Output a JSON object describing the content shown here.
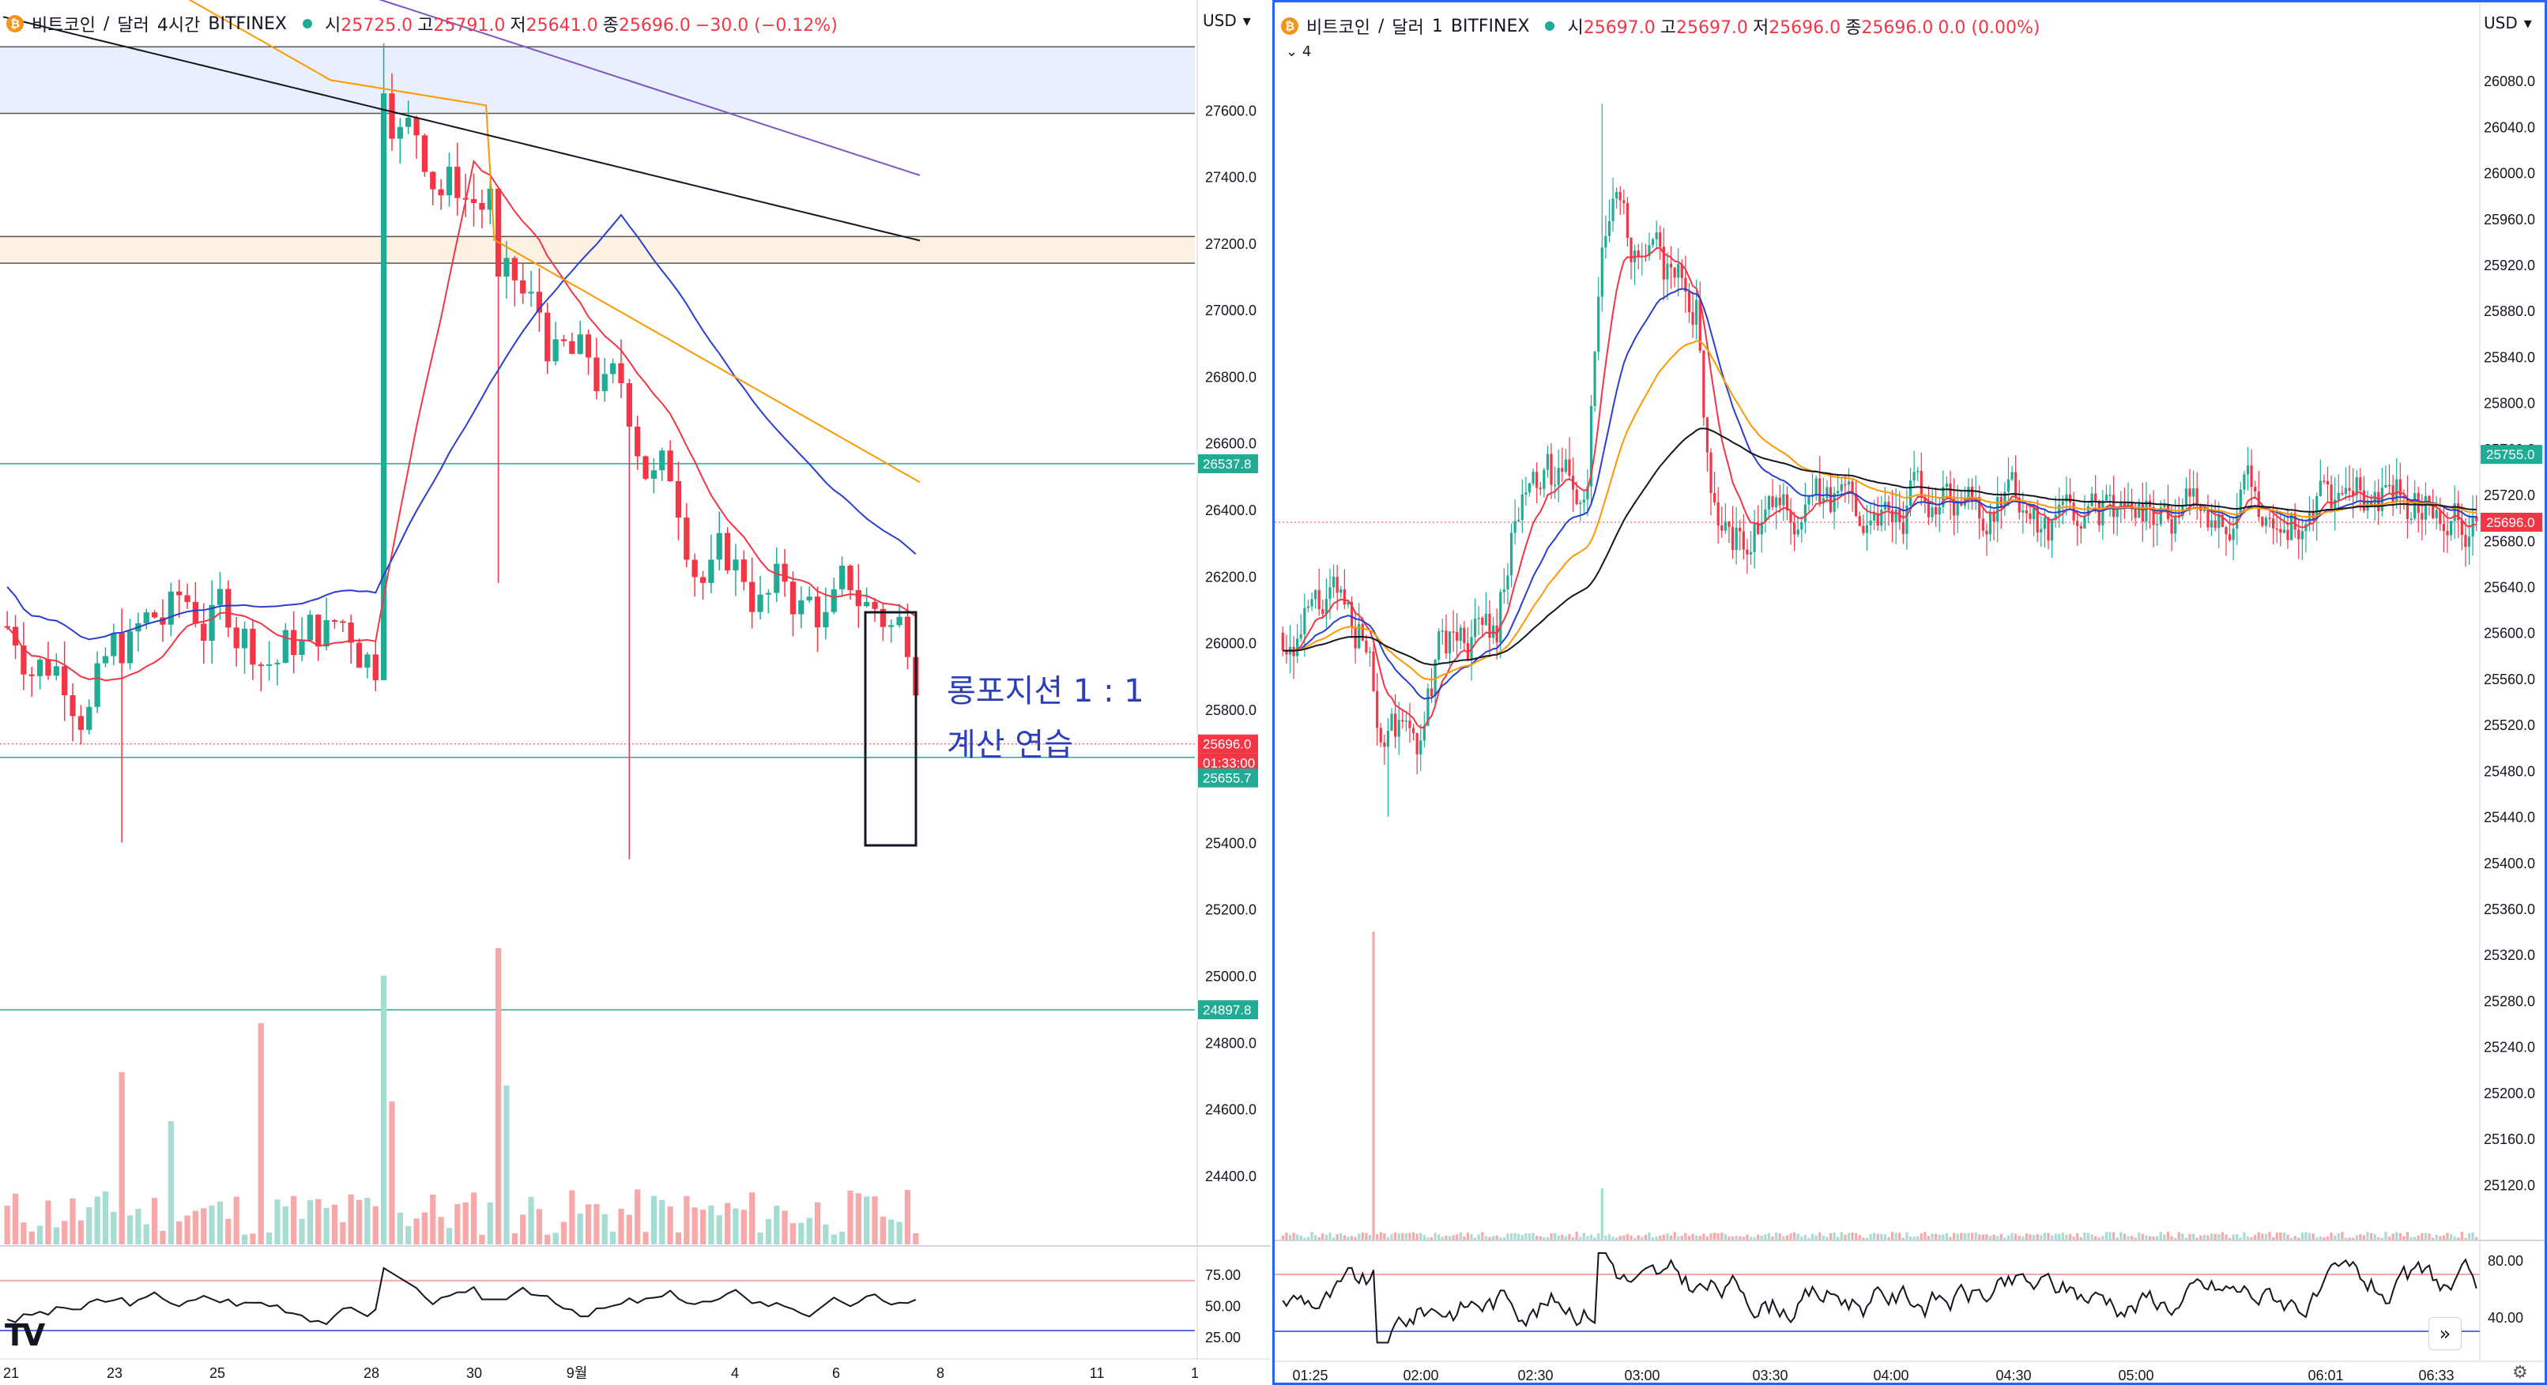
{
  "left_chart": {
    "symbol": "비트코인",
    "sep1": "/",
    "quote": "달러",
    "interval": "4시간",
    "exchange": "BITFINEX",
    "ohlc": [
      {
        "k": "시",
        "v": "25725.0"
      },
      {
        "k": "고",
        "v": "25791.0"
      },
      {
        "k": "저",
        "v": "25641.0"
      },
      {
        "k": "종",
        "v": "25696.0"
      },
      {
        "k": "",
        "v": "−30.0 (−0.12%)"
      }
    ],
    "currency": "USD",
    "price_ticks": [
      "27600.0",
      "27400.0",
      "27200.0",
      "27000.0",
      "26800.0",
      "26600.0",
      "26400.0",
      "26200.0",
      "26000.0",
      "25800.0",
      "25600.0",
      "25400.0",
      "25200.0",
      "25000.0",
      "24800.0",
      "24600.0",
      "24400.0"
    ],
    "price_tags": [
      {
        "label": "26537.8",
        "color": "#22ab94"
      },
      {
        "label": "25696.0",
        "color": "#f23645"
      },
      {
        "label": "01:33:00",
        "color": "#f23645"
      },
      {
        "label": "25655.7",
        "color": "#22ab94"
      },
      {
        "label": "24897.8",
        "color": "#22ab94"
      }
    ],
    "osc_ticks": [
      "75.00",
      "50.00",
      "25.00"
    ],
    "time_ticks": [
      "21",
      "23",
      "25",
      "28",
      "30",
      "9월",
      "4",
      "6",
      "8",
      "11",
      "1"
    ],
    "annotation": {
      "line1": "롱포지션 1 : 1",
      "line2": "계산 연습"
    }
  },
  "right_chart": {
    "symbol": "비트코인",
    "sep1": "/",
    "quote": "달러",
    "interval": "1",
    "exchange": "BITFINEX",
    "ohlc": [
      {
        "k": "시",
        "v": "25697.0"
      },
      {
        "k": "고",
        "v": "25697.0"
      },
      {
        "k": "저",
        "v": "25696.0"
      },
      {
        "k": "종",
        "v": "25696.0"
      },
      {
        "k": "",
        "v": "0.0 (0.00%)"
      }
    ],
    "indicator_count": "4",
    "currency": "USD",
    "price_ticks": [
      "26080.0",
      "26040.0",
      "26000.0",
      "25960.0",
      "25920.0",
      "25880.0",
      "25840.0",
      "25800.0",
      "25760.0",
      "25720.0",
      "25680.0",
      "25640.0",
      "25600.0",
      "25560.0",
      "25520.0",
      "25480.0",
      "25440.0",
      "25400.0",
      "25360.0",
      "25320.0",
      "25280.0",
      "25240.0",
      "25200.0",
      "25160.0",
      "25120.0"
    ],
    "price_tags": [
      {
        "label": "25755.0",
        "color": "#22ab94"
      },
      {
        "label": "25696.0",
        "color": "#f23645"
      }
    ],
    "osc_ticks": [
      "80.00",
      "40.00"
    ],
    "time_ticks": [
      "01:25",
      "02:00",
      "02:30",
      "03:00",
      "03:30",
      "04:00",
      "04:30",
      "05:00",
      "06:01",
      "06:33"
    ]
  },
  "colors": {
    "up": "#22ab94",
    "down": "#f23645",
    "ma_red": "#f23645",
    "ma_blue": "#2a3fcf",
    "ma_orange": "#ff9800",
    "ma_black": "#131722",
    "ma_purple": "#7e57c2",
    "accent": "#2962ff"
  },
  "icons": {
    "logo": "tradingview-logo-icon",
    "fast_forward": "double-chevron-right-icon",
    "settings": "gear-icon",
    "currency_menu": "chevron-down-icon",
    "coin": "bitcoin-icon"
  }
}
